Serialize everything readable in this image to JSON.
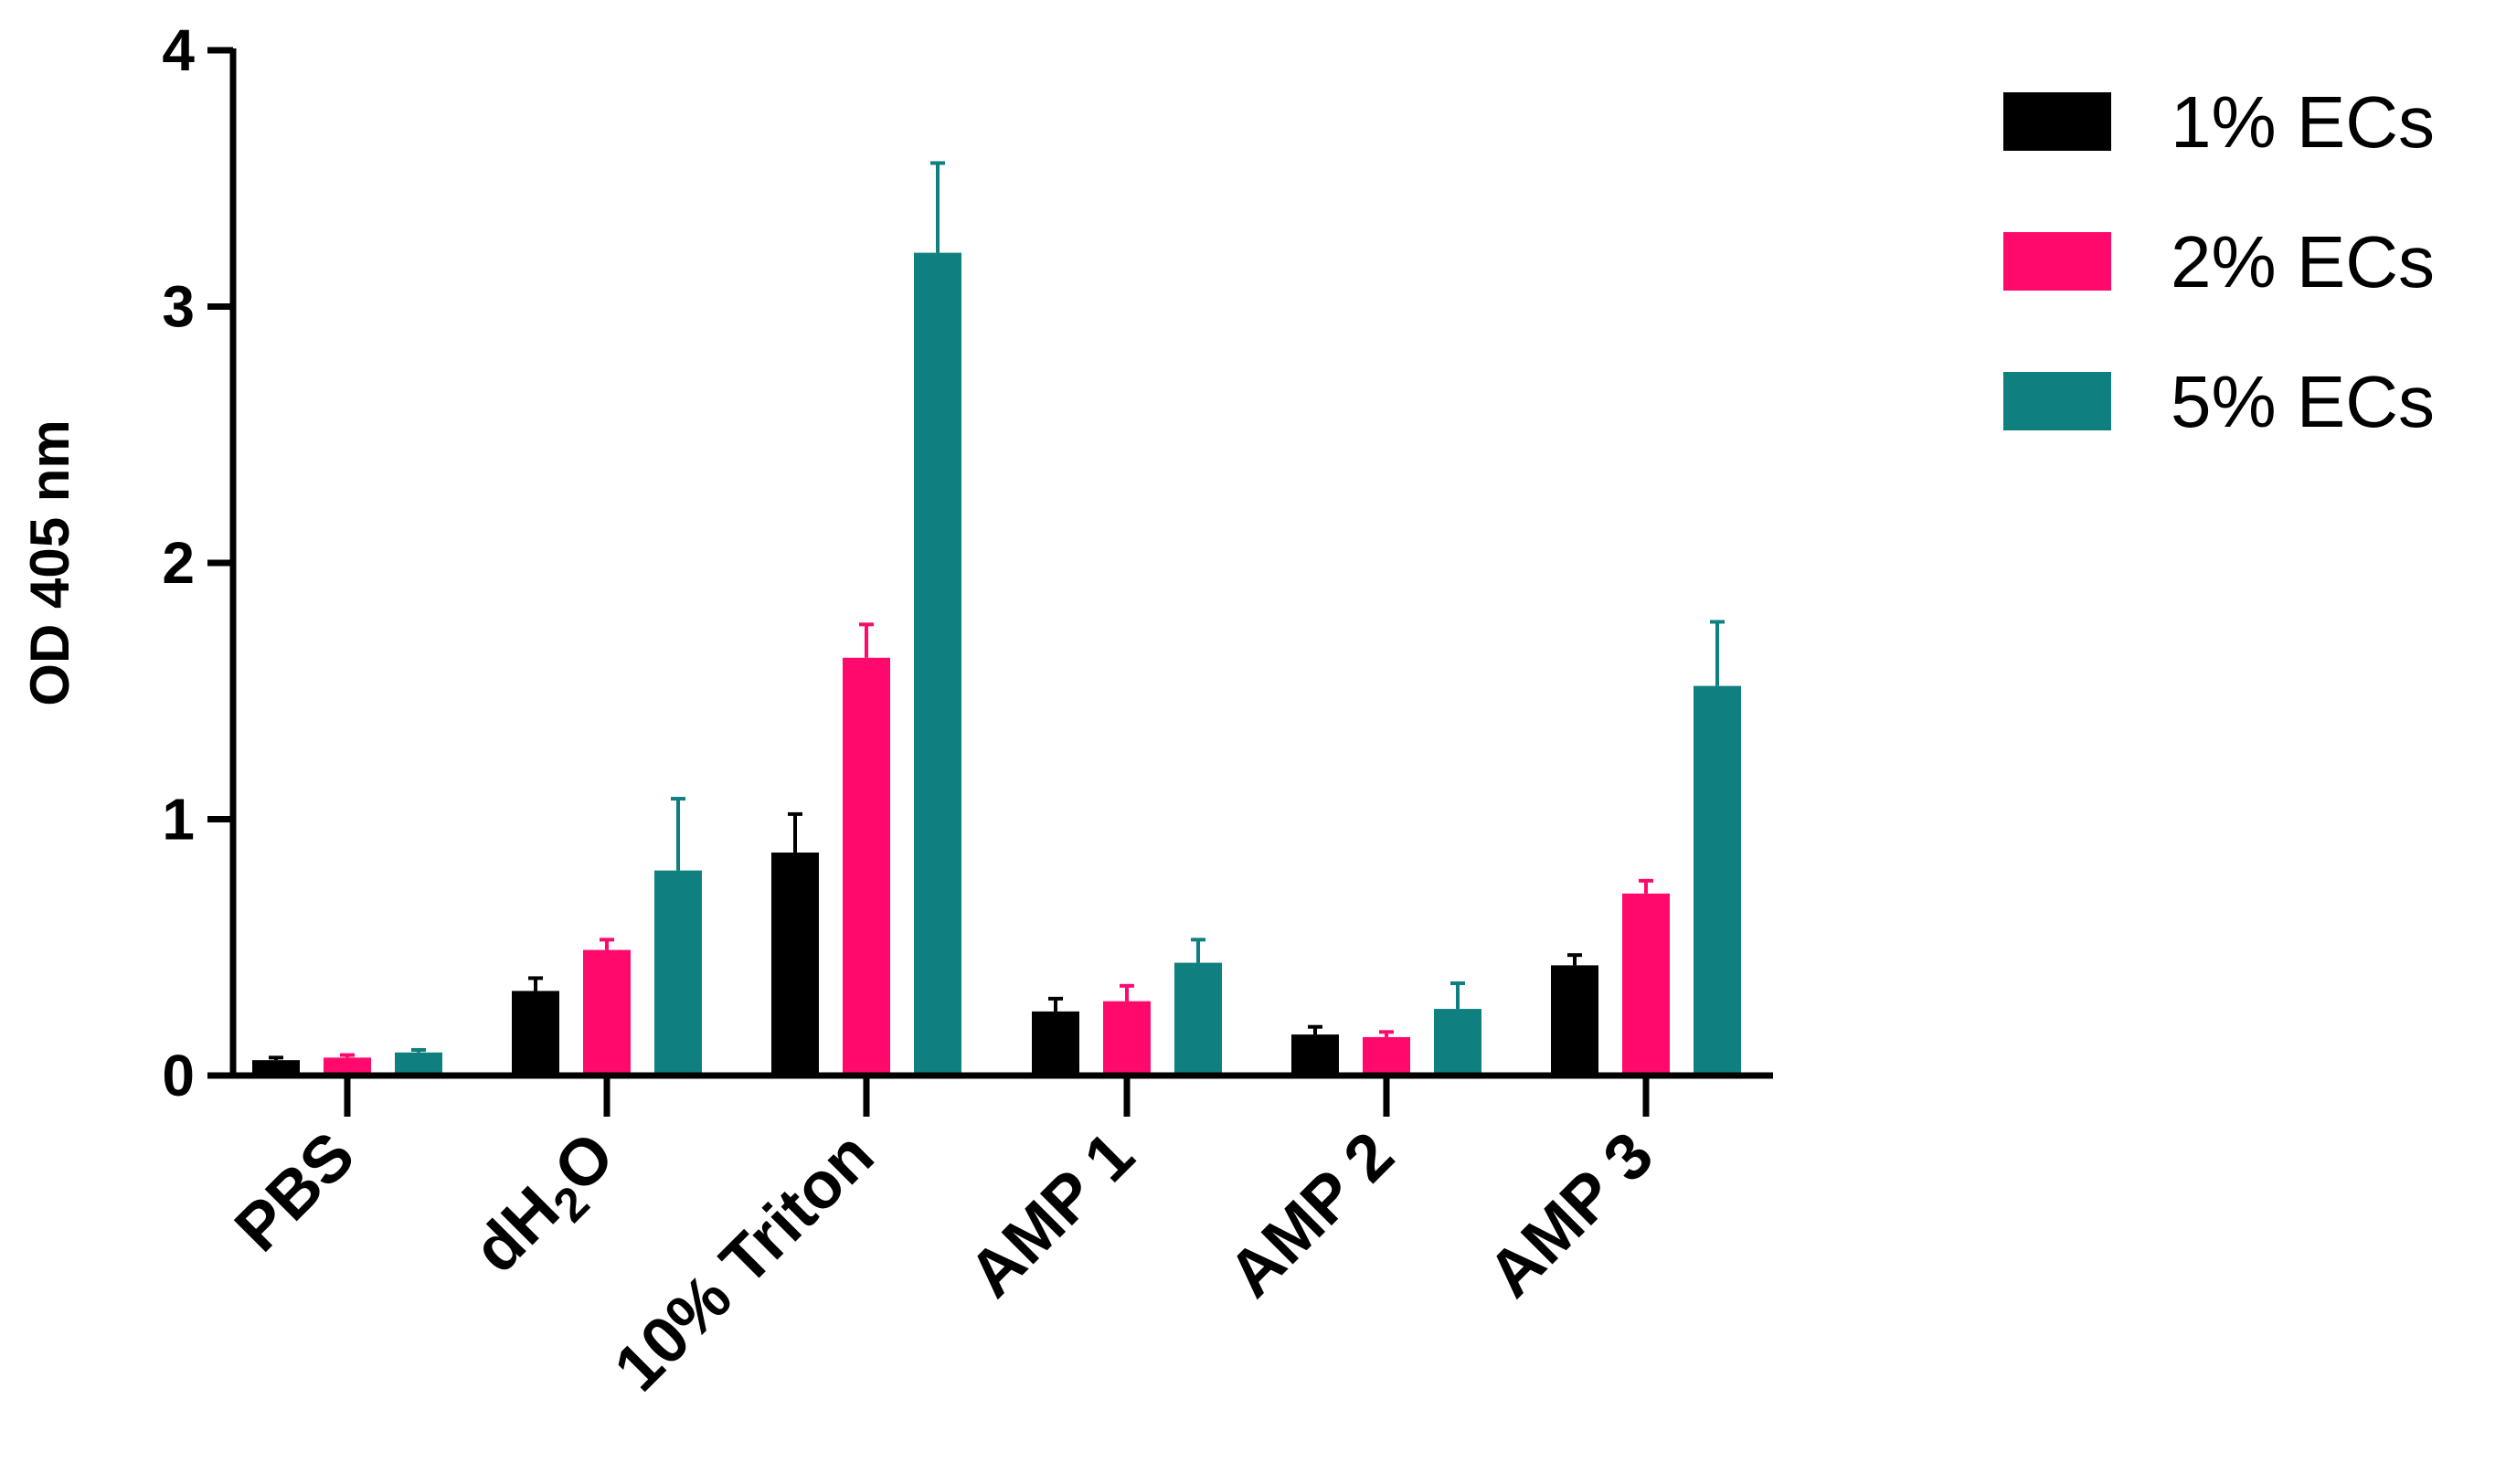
{
  "chart_data": {
    "type": "bar",
    "title": "",
    "xlabel": "",
    "ylabel": "OD 405 nm",
    "ylim": [
      0,
      4
    ],
    "yticks": [
      "0",
      "1",
      "2",
      "3",
      "4"
    ],
    "categories": [
      "PBS",
      "dH2O",
      "10% Triton",
      "AMP 1",
      "AMP 2",
      "AMP 3"
    ],
    "categories_display": [
      {
        "main": "PBS"
      },
      {
        "main": "dH",
        "sub": "2",
        "tail": "O"
      },
      {
        "main": "10% Triton"
      },
      {
        "main": "AMP 1"
      },
      {
        "main": "AMP 2"
      },
      {
        "main": "AMP 3"
      }
    ],
    "series": [
      {
        "name": "1% ECs",
        "color": "#000000",
        "values": [
          0.06,
          0.33,
          0.87,
          0.25,
          0.16,
          0.43
        ],
        "errors": [
          0.01,
          0.05,
          0.15,
          0.05,
          0.03,
          0.04
        ]
      },
      {
        "name": "2% ECs",
        "color": "#ff0a6c",
        "values": [
          0.07,
          0.49,
          1.63,
          0.29,
          0.15,
          0.71
        ],
        "errors": [
          0.01,
          0.04,
          0.13,
          0.06,
          0.02,
          0.05
        ]
      },
      {
        "name": "5% ECs",
        "color": "#0f7f7f",
        "values": [
          0.09,
          0.8,
          3.21,
          0.44,
          0.26,
          1.52
        ],
        "errors": [
          0.01,
          0.28,
          0.35,
          0.09,
          0.1,
          0.25
        ]
      }
    ],
    "legend_position": "top-right",
    "grid": false
  }
}
